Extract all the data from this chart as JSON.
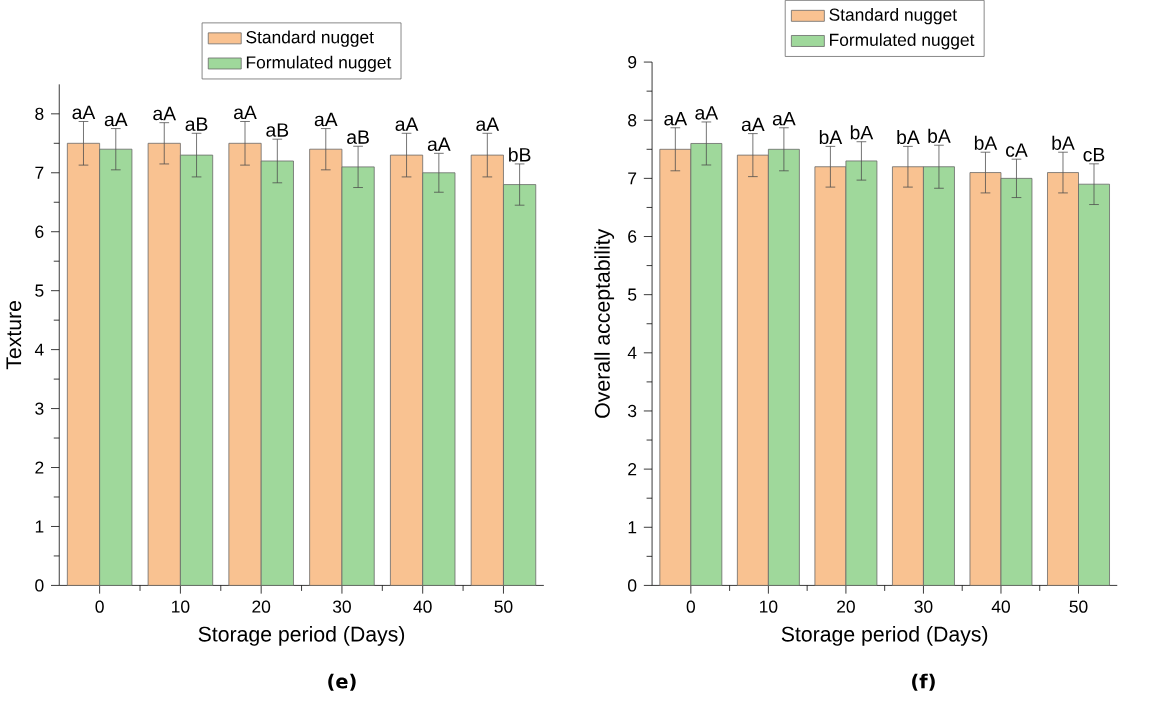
{
  "chart_data": [
    {
      "type": "bar",
      "xlabel": "Storage period (Days)",
      "ylabel": "Texture",
      "x": [
        0,
        10,
        20,
        30,
        40,
        50
      ],
      "xlim": [
        -5,
        55
      ],
      "xticks": [
        0,
        10,
        20,
        30,
        40,
        50
      ],
      "ylim": [
        0,
        8.5
      ],
      "yticks": [
        0,
        1,
        2,
        3,
        4,
        5,
        6,
        7,
        8
      ],
      "legend": "top",
      "series": [
        {
          "name": "Standard nugget",
          "color": "#f9c291",
          "values": [
            7.5,
            7.5,
            7.5,
            7.4,
            7.3,
            7.3
          ],
          "errors": [
            0.37,
            0.35,
            0.37,
            0.35,
            0.37,
            0.37
          ]
        },
        {
          "name": "Formulated nugget",
          "color": "#9fd89b",
          "values": [
            7.4,
            7.3,
            7.2,
            7.1,
            7.0,
            6.8
          ],
          "errors": [
            0.35,
            0.37,
            0.37,
            0.35,
            0.33,
            0.35
          ]
        }
      ],
      "annotations": [
        {
          "text": "aA",
          "x": -2,
          "y": 7.87
        },
        {
          "text": "aA",
          "x": 2,
          "y": 7.75
        },
        {
          "text": "aA",
          "x": 8,
          "y": 7.85
        },
        {
          "text": "aB",
          "x": 12,
          "y": 7.67
        },
        {
          "text": "aA",
          "x": 18,
          "y": 7.87
        },
        {
          "text": "aB",
          "x": 22,
          "y": 7.57
        },
        {
          "text": "aA",
          "x": 28,
          "y": 7.75
        },
        {
          "text": "aB",
          "x": 32,
          "y": 7.45
        },
        {
          "text": "aA",
          "x": 38,
          "y": 7.67
        },
        {
          "text": "aA",
          "x": 42,
          "y": 7.33
        },
        {
          "text": "aA",
          "x": 48,
          "y": 7.67
        },
        {
          "text": "bB",
          "x": 52,
          "y": 7.15
        },
        "(e)"
      ]
    },
    {
      "type": "bar",
      "xlabel": "Storage period (Days)",
      "ylabel": "Overall acceptability",
      "x": [
        0,
        10,
        20,
        30,
        40,
        50
      ],
      "xlim": [
        -5,
        55
      ],
      "xticks": [
        0,
        10,
        20,
        30,
        40,
        50
      ],
      "ylim": [
        0,
        9
      ],
      "yticks": [
        0,
        1,
        2,
        3,
        4,
        5,
        6,
        7,
        8,
        9
      ],
      "legend": "top",
      "series": [
        {
          "name": "Standard nugget",
          "color": "#f9c291",
          "values": [
            7.5,
            7.4,
            7.2,
            7.2,
            7.1,
            7.1
          ],
          "errors": [
            0.37,
            0.37,
            0.35,
            0.35,
            0.35,
            0.35
          ]
        },
        {
          "name": "Formulated nugget",
          "color": "#9fd89b",
          "values": [
            7.6,
            7.5,
            7.3,
            7.2,
            7.0,
            6.9
          ],
          "errors": [
            0.37,
            0.37,
            0.33,
            0.37,
            0.33,
            0.35
          ]
        }
      ],
      "annotations": [
        {
          "text": "aA",
          "x": -2,
          "y": 7.87
        },
        {
          "text": "aA",
          "x": 2,
          "y": 7.97
        },
        {
          "text": "aA",
          "x": 8,
          "y": 7.77
        },
        {
          "text": "aA",
          "x": 12,
          "y": 7.87
        },
        {
          "text": "bA",
          "x": 18,
          "y": 7.55
        },
        {
          "text": "bA",
          "x": 22,
          "y": 7.63
        },
        {
          "text": "bA",
          "x": 28,
          "y": 7.55
        },
        {
          "text": "bA",
          "x": 32,
          "y": 7.57
        },
        {
          "text": "bA",
          "x": 38,
          "y": 7.45
        },
        {
          "text": "cA",
          "x": 42,
          "y": 7.33
        },
        {
          "text": "bA",
          "x": 48,
          "y": 7.45
        },
        {
          "text": "cB",
          "x": 52,
          "y": 7.25
        },
        "(f)"
      ]
    }
  ]
}
